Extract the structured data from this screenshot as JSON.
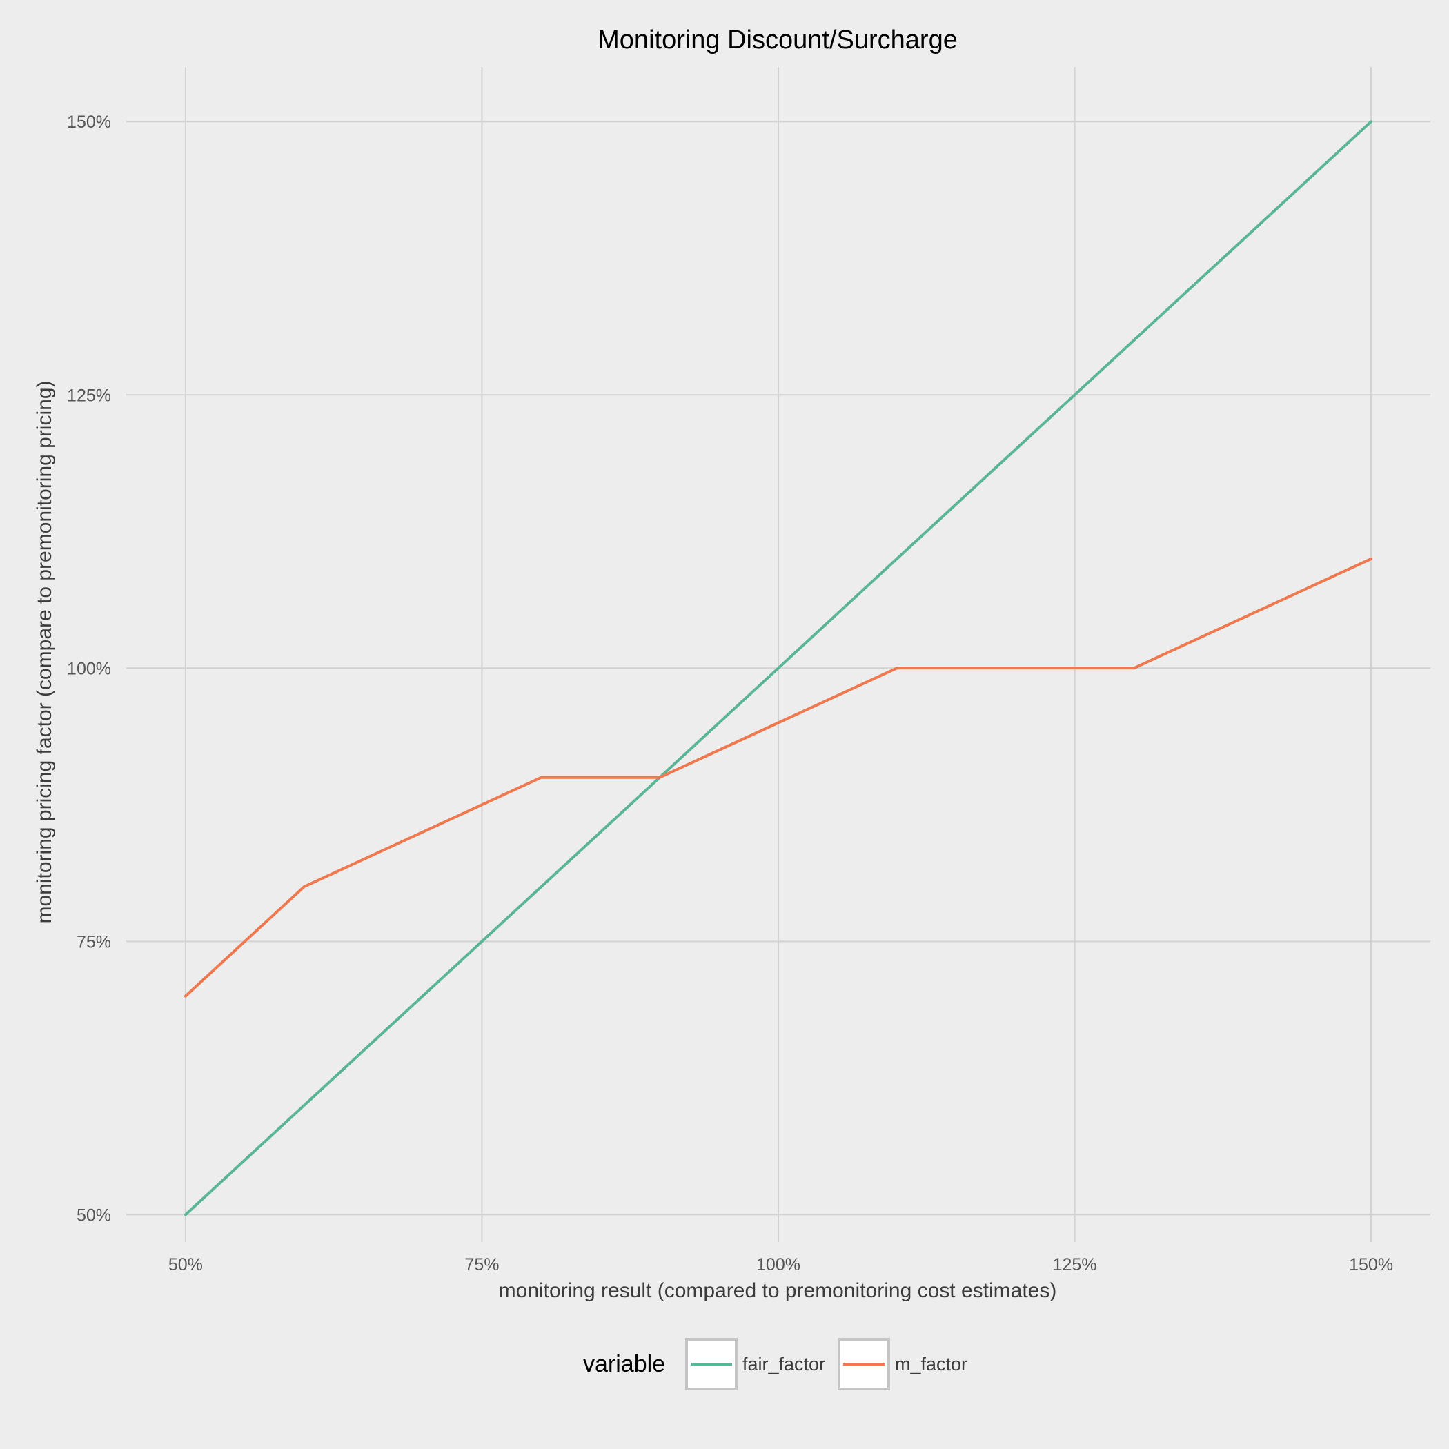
{
  "chart_data": {
    "type": "line",
    "title": "Monitoring Discount/Surcharge",
    "xlabel": "monitoring result (compared to premonitoring cost estimates)",
    "ylabel": "monitoring pricing factor (compare to premonitoring pricing)",
    "x": [
      0.5,
      0.6,
      0.7,
      0.8,
      0.9,
      1.0,
      1.1,
      1.2,
      1.3,
      1.4,
      1.5
    ],
    "xlim": [
      0.45,
      1.55
    ],
    "ylim": [
      0.475,
      1.55
    ],
    "xticks": [
      {
        "value": 0.5,
        "label": "50%"
      },
      {
        "value": 0.75,
        "label": "75%"
      },
      {
        "value": 1.0,
        "label": "100%"
      },
      {
        "value": 1.25,
        "label": "125%"
      },
      {
        "value": 1.5,
        "label": "150%"
      }
    ],
    "yticks": [
      {
        "value": 0.5,
        "label": "50%"
      },
      {
        "value": 0.75,
        "label": "75%"
      },
      {
        "value": 1.0,
        "label": "100%"
      },
      {
        "value": 1.25,
        "label": "125%"
      },
      {
        "value": 1.5,
        "label": "150%"
      }
    ],
    "series": [
      {
        "name": "fair_factor",
        "color": "#5ab596",
        "values": [
          0.5,
          0.6,
          0.7,
          0.8,
          0.9,
          1.0,
          1.1,
          1.2,
          1.3,
          1.4,
          1.5
        ]
      },
      {
        "name": "m_factor",
        "color": "#f0784f",
        "values": [
          0.7,
          0.8,
          0.85,
          0.9,
          0.9,
          0.95,
          1.0,
          1.0,
          1.0,
          1.05,
          1.1
        ]
      }
    ],
    "legend": {
      "title": "variable",
      "position": "bottom"
    },
    "grid": true,
    "background": "#ededed"
  }
}
